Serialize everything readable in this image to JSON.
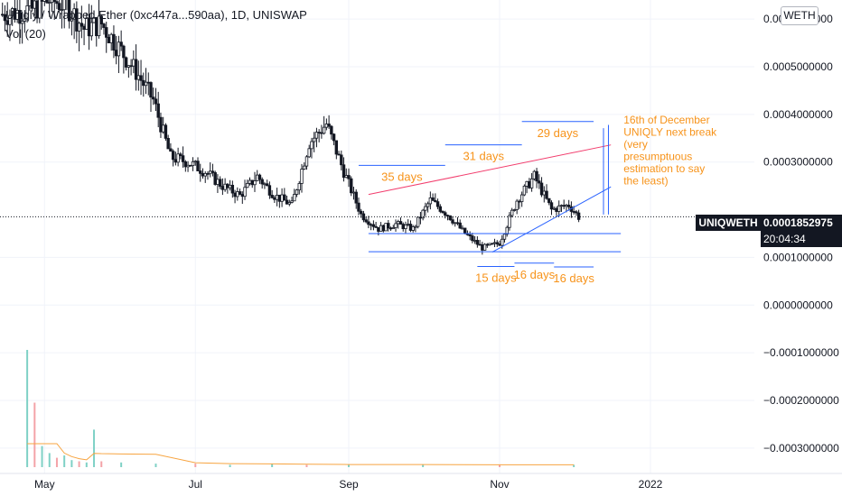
{
  "header": {
    "title": "Uniqly / Wrapped Ether (0xc447a...590aa), 1D, UNISWAP",
    "volume_label": "Vol (20)",
    "scale_label": "WETH"
  },
  "price_tag": {
    "symbol": "UNIQWETH",
    "price": "0.0001852975",
    "countdown": "20:04:34"
  },
  "colors": {
    "candle": "#131722",
    "vol_up": "#7fd1c6",
    "vol_down": "#f4a3a8",
    "vol_ma": "#f7a440",
    "horizontal_line": "#2962ff",
    "upper_trendline": "#f23d6d",
    "lower_trendline": "#2962ff",
    "annotation_text": "#f7931a",
    "grid": "#f0f3fa",
    "axis_text": "#131722"
  },
  "chart_data": {
    "type": "candlestick",
    "x_tick_labels": [
      "May",
      "Jul",
      "Sep",
      "Nov",
      "2022"
    ],
    "x_ticks": [
      "2021-05-01",
      "2021-07-01",
      "2021-09-01",
      "2021-11-01",
      "2022-01-01"
    ],
    "xlim": [
      "2021-04-13",
      "2022-02-12"
    ],
    "y_tick_labels": [
      "0.0006000000",
      "0.0005000000",
      "0.0004000000",
      "0.0003000000",
      "0.0001000000",
      "0.0000000000",
      "−0.0001000000",
      "−0.0002000000",
      "−0.0003000000"
    ],
    "y_ticks": [
      0.0006,
      0.0005,
      0.0004,
      0.0003,
      0.0001,
      0.0,
      -0.0001,
      -0.0002,
      -0.0003
    ],
    "ylim": [
      -0.00034,
      0.00064
    ],
    "last_price": 0.0001852975,
    "price_path": {
      "date": [
        "2021-04-14",
        "2021-04-26",
        "2021-05-03",
        "2021-05-10",
        "2021-05-17",
        "2021-05-24",
        "2021-05-31",
        "2021-06-07",
        "2021-06-14",
        "2021-06-21",
        "2021-06-28",
        "2021-07-05",
        "2021-07-12",
        "2021-07-19",
        "2021-07-26",
        "2021-08-02",
        "2021-08-09",
        "2021-08-16",
        "2021-08-23",
        "2021-08-30",
        "2021-09-06",
        "2021-09-13",
        "2021-09-20",
        "2021-09-27",
        "2021-10-04",
        "2021-10-11",
        "2021-10-18",
        "2021-10-25",
        "2021-11-01",
        "2021-11-08",
        "2021-11-15",
        "2021-11-22",
        "2021-11-29",
        "2021-12-03"
      ],
      "close": [
        0.00061,
        0.00062,
        0.00064,
        0.00063,
        0.00058,
        0.00059,
        0.00054,
        0.00049,
        0.00043,
        0.00031,
        0.0003,
        0.00028,
        0.00025,
        0.00023,
        0.00027,
        0.00023,
        0.00021,
        0.00034,
        0.00038,
        0.00028,
        0.00019,
        0.00016,
        0.00017,
        0.00016,
        0.00022,
        0.00019,
        0.00015,
        0.00012,
        0.00013,
        0.00022,
        0.00027,
        0.0002,
        0.00021,
        0.000185
      ]
    },
    "volume": {
      "date": [
        "2021-04-24",
        "2021-04-27",
        "2021-04-30",
        "2021-05-03",
        "2021-05-06",
        "2021-05-09",
        "2021-05-12",
        "2021-05-15",
        "2021-05-18",
        "2021-05-21",
        "2021-05-24",
        "2021-06-01",
        "2021-06-15",
        "2021-07-01",
        "2021-07-15",
        "2021-08-01",
        "2021-08-15",
        "2021-09-01",
        "2021-10-01",
        "2021-11-01",
        "2021-12-01"
      ],
      "value": [
        100,
        55,
        18,
        12,
        8,
        10,
        6,
        5,
        4,
        32,
        5,
        4,
        3,
        3,
        2,
        3,
        2,
        2,
        2,
        2,
        2
      ]
    },
    "ranges": [
      {
        "label": "35 days",
        "start": "2021-09-05",
        "end": "2021-10-10",
        "price": 0.000293
      },
      {
        "label": "31 days",
        "start": "2021-10-10",
        "end": "2021-11-10",
        "price": 0.000336
      },
      {
        "label": "29 days",
        "start": "2021-11-10",
        "end": "2021-12-09",
        "price": 0.000385
      },
      {
        "label": "15 days",
        "start": "2021-10-23",
        "end": "2021-11-07",
        "price": 8.1e-05
      },
      {
        "label": "16 days",
        "start": "2021-11-07",
        "end": "2021-11-23",
        "price": 8.8e-05
      },
      {
        "label": "16 days",
        "start": "2021-11-23",
        "end": "2021-12-09",
        "price": 8e-05
      }
    ],
    "support_lines": [
      {
        "start": "2021-09-09",
        "end": "2021-12-20",
        "price": 0.00015
      },
      {
        "start": "2021-09-09",
        "end": "2021-12-20",
        "price": 0.000112
      }
    ],
    "trendlines": [
      {
        "color": "upper",
        "start": "2021-09-09",
        "end": "2021-12-16",
        "p0": 0.000232,
        "p1": 0.000336
      },
      {
        "color": "lower",
        "start": "2021-10-29",
        "end": "2021-12-16",
        "p0": 0.000111,
        "p1": 0.000248
      }
    ],
    "vertical_brackets": [
      {
        "date": "2021-12-13",
        "low": 0.00019,
        "high": 0.000371
      },
      {
        "date": "2021-12-15",
        "low": 0.00019,
        "high": 0.000378
      }
    ],
    "note": {
      "lines": [
        "16th of December",
        "UNIQLY next break",
        "(very",
        "presumptuous",
        "estimation to say",
        "the least)"
      ],
      "date": "2021-12-16",
      "price": 0.000385
    }
  }
}
